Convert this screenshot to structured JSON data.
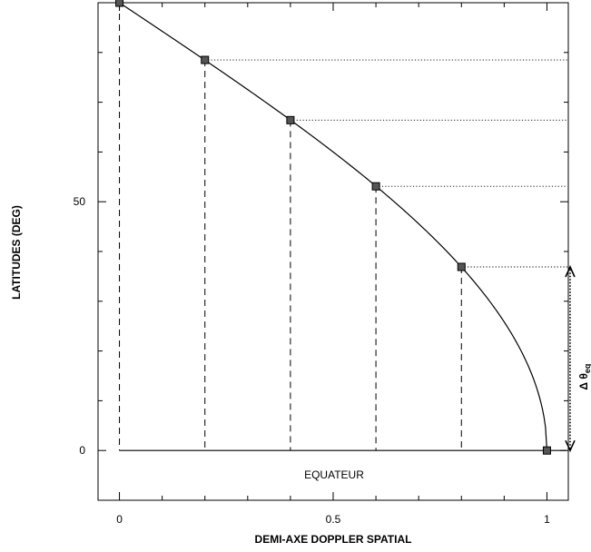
{
  "chart_data": {
    "type": "line",
    "title": "",
    "xlabel": "DEMI-AXE DOPPLER SPATIAL",
    "ylabel": "LATITUDES (DEG)",
    "xlim": [
      -0.05,
      1.05
    ],
    "ylim": [
      -10,
      90
    ],
    "x_ticks": [
      {
        "value": 0,
        "label": "0"
      },
      {
        "value": 0.5,
        "label": "0.5"
      },
      {
        "value": 1,
        "label": "1"
      }
    ],
    "x_minor_ticks": [
      0.1,
      0.2,
      0.3,
      0.4,
      0.6,
      0.7,
      0.8,
      0.9
    ],
    "y_ticks": [
      {
        "value": 0,
        "label": "0"
      },
      {
        "value": 50,
        "label": "50"
      }
    ],
    "y_minor_ticks": [
      10,
      20,
      30,
      40,
      60,
      70,
      80
    ],
    "grid": false,
    "series": [
      {
        "marker": "square",
        "points": [
          {
            "x": 0.0,
            "y": 90.0
          },
          {
            "x": 0.2,
            "y": 78.5
          },
          {
            "x": 0.4,
            "y": 66.4
          },
          {
            "x": 0.6,
            "y": 53.1
          },
          {
            "x": 0.8,
            "y": 36.9
          },
          {
            "x": 1.0,
            "y": 0.0
          }
        ]
      }
    ],
    "vertical_dashed_lines": [
      0.0,
      0.2,
      0.4,
      0.6,
      0.8
    ],
    "horizontal_dotted_lines": [
      90.0,
      78.5,
      66.4,
      53.1,
      36.9
    ],
    "equator_label": "EQUATEUR",
    "arrow_annotation": {
      "label": "Δ θ",
      "subscript": "eq",
      "from_y": 0,
      "to_y": 36.9
    }
  }
}
